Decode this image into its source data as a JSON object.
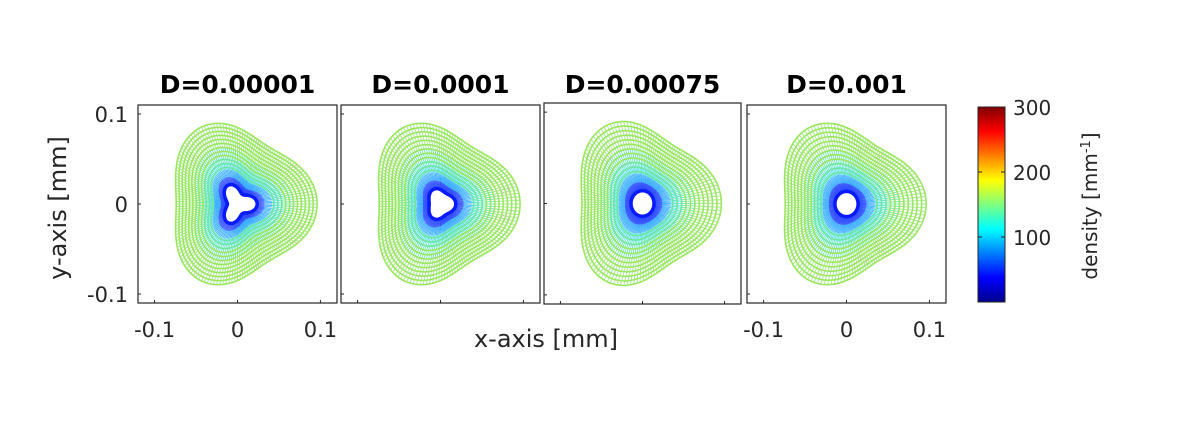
{
  "chart_data": {
    "type": "heatmap",
    "colormap": "jet",
    "xlabel": "x-axis [mm]",
    "ylabel": "y-axis [mm]",
    "xlim": [
      -0.12,
      0.12
    ],
    "ylim": [
      -0.11,
      0.11
    ],
    "xticks": [
      -0.1,
      0,
      0.1
    ],
    "yticks": [
      -0.1,
      0,
      0.1
    ],
    "xtick_labels": [
      "-0.1",
      "0",
      "0.1"
    ],
    "ytick_labels": [
      "-0.1",
      "0",
      "0.1"
    ],
    "colorbar": {
      "label_main": "density [mm",
      "label_sup": "-1",
      "label_end": "]",
      "range": [
        0,
        300
      ],
      "ticks": [
        100,
        200,
        300
      ],
      "tick_labels": [
        "100",
        "200",
        "300"
      ]
    },
    "panels": [
      {
        "title": "D=0.00001",
        "contour_density": 160,
        "hole_shape": "triangle",
        "hole_radius": 0.018
      },
      {
        "title": "D=0.0001",
        "contour_density": 150,
        "hole_shape": "rounded-triangle",
        "hole_radius": 0.016
      },
      {
        "title": "D=0.00075",
        "contour_density": 145,
        "hole_shape": "circle",
        "hole_radius": 0.014
      },
      {
        "title": "D=0.001",
        "contour_density": 145,
        "hole_shape": "circle",
        "hole_radius": 0.014
      }
    ]
  }
}
